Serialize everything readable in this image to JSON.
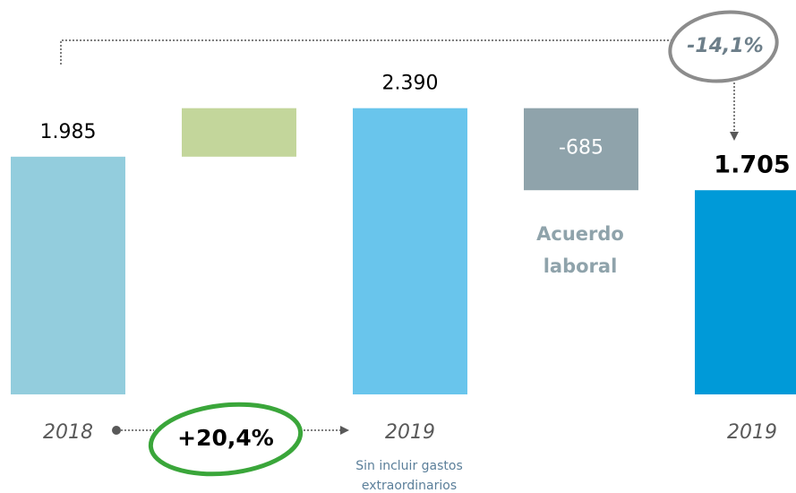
{
  "chart_data": {
    "type": "waterfall",
    "categories": [
      "2018",
      null,
      "2019",
      null,
      "2019"
    ],
    "values": [
      1985,
      405,
      2390,
      -685,
      1705
    ],
    "value_labels": [
      "1.985",
      null,
      "2.390",
      "-685",
      "1.705"
    ],
    "colors": [
      "#93cddd",
      "#c3d69b",
      "#69c5ec",
      "#8fa3ab",
      "#009ad8"
    ],
    "ylim": [
      0,
      2500
    ],
    "annotations": {
      "growth": "+20,4%",
      "change": "-14,1%",
      "agreement": [
        "Acuerdo",
        "laboral"
      ],
      "note": [
        "Sin incluir gastos",
        "extraordinarios"
      ]
    }
  }
}
